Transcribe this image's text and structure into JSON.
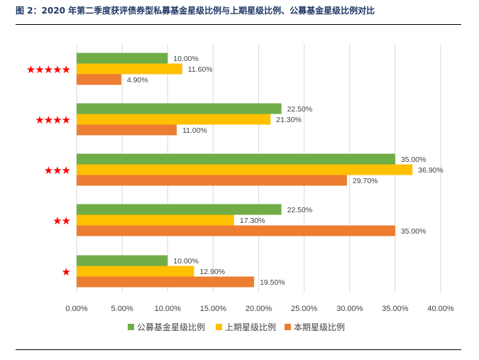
{
  "title": "图 2：2020 年第二季度获评债券型私募基金星级比例与上期星级比例、公募基金星级比例对比",
  "chart_data": {
    "type": "bar",
    "orientation": "horizontal",
    "categories": [
      "★★★★★",
      "★★★★",
      "★★★",
      "★★",
      "★"
    ],
    "series": [
      {
        "name": "公募基金星级比例",
        "color": "#70ad47",
        "values": [
          10.0,
          22.5,
          35.0,
          22.5,
          10.0
        ]
      },
      {
        "name": "上期星级比例",
        "color": "#ffc000",
        "values": [
          11.6,
          21.3,
          36.9,
          17.3,
          12.9
        ]
      },
      {
        "name": "本期星级比例",
        "color": "#ed7d31",
        "values": [
          4.9,
          11.0,
          29.7,
          35.0,
          19.5
        ]
      }
    ],
    "xlim": [
      0,
      40
    ],
    "xticks": [
      0,
      5,
      10,
      15,
      20,
      25,
      30,
      35,
      40
    ],
    "tick_format": "0.00%",
    "grid": true,
    "legend": "bottom",
    "category_color": "#ff0000"
  }
}
